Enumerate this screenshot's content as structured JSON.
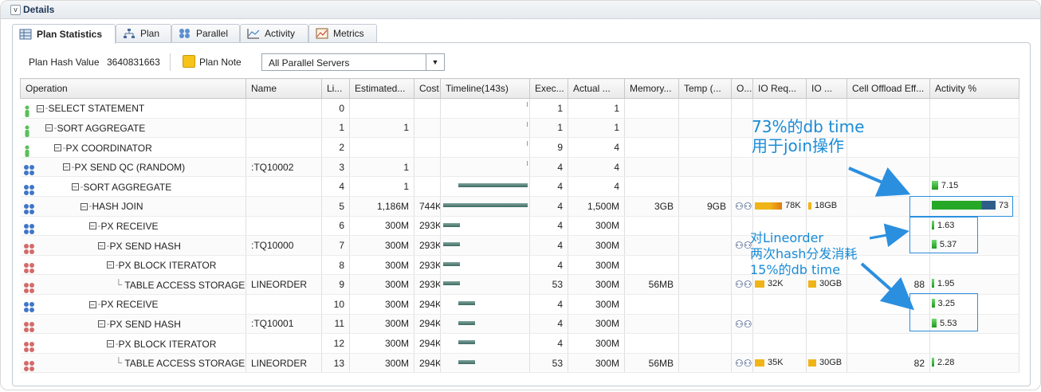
{
  "section": {
    "title": "Details"
  },
  "tabs": [
    {
      "label": "Plan Statistics",
      "icon": "table-icon",
      "active": true
    },
    {
      "label": "Plan",
      "icon": "tree-icon",
      "active": false
    },
    {
      "label": "Parallel",
      "icon": "servers-icon",
      "active": false
    },
    {
      "label": "Activity",
      "icon": "line-chart-icon",
      "active": false
    },
    {
      "label": "Metrics",
      "icon": "metrics-chart-icon",
      "active": false
    }
  ],
  "toolbar": {
    "plan_hash_label": "Plan Hash Value",
    "plan_hash_value": "3640831663",
    "plan_note_label": "Plan Note",
    "filter_selected": "All Parallel Servers"
  },
  "columns": [
    "Operation",
    "Name",
    "Li...",
    "Estimated...",
    "Cost",
    "Timeline(143s)",
    "Exec...",
    "Actual ...",
    "Memory...",
    "Temp (...",
    "O...",
    "IO Req...",
    "IO ...",
    "Cell Offload Eff...",
    "Activity %"
  ],
  "rows": [
    {
      "icon": "green",
      "depth": 0,
      "op": "SELECT STATEMENT",
      "name": "",
      "line": "0",
      "est": "",
      "cost": "",
      "exec": "1",
      "actual": "1",
      "mem": "",
      "temp": "",
      "bin": false,
      "io_req": "",
      "io_bytes": "",
      "cell": "",
      "act": "",
      "act_pct": 0
    },
    {
      "icon": "green",
      "depth": 1,
      "op": "SORT AGGREGATE",
      "name": "",
      "line": "1",
      "est": "1",
      "cost": "",
      "exec": "1",
      "actual": "1",
      "mem": "",
      "temp": "",
      "bin": false,
      "io_req": "",
      "io_bytes": "",
      "cell": "",
      "act": "",
      "act_pct": 0
    },
    {
      "icon": "green",
      "depth": 2,
      "op": "PX COORDINATOR",
      "name": "",
      "line": "2",
      "est": "",
      "cost": "",
      "exec": "9",
      "actual": "4",
      "mem": "",
      "temp": "",
      "bin": false,
      "io_req": "",
      "io_bytes": "",
      "cell": "",
      "act": "",
      "act_pct": 0
    },
    {
      "icon": "blue",
      "depth": 3,
      "op": "PX SEND QC (RANDOM)",
      "name": ":TQ10002",
      "line": "3",
      "est": "1",
      "cost": "",
      "exec": "4",
      "actual": "4",
      "mem": "",
      "temp": "",
      "bin": false,
      "io_req": "",
      "io_bytes": "",
      "cell": "",
      "act": "",
      "act_pct": 0
    },
    {
      "icon": "blue",
      "depth": 4,
      "op": "SORT AGGREGATE",
      "name": "",
      "line": "4",
      "est": "1",
      "cost": "",
      "exec": "4",
      "actual": "4",
      "mem": "",
      "temp": "",
      "bin": false,
      "io_req": "",
      "io_bytes": "",
      "cell": "",
      "act": "7.15",
      "act_pct": 7.15
    },
    {
      "icon": "blue",
      "depth": 5,
      "op": "HASH JOIN",
      "name": "",
      "line": "5",
      "est": "1,186M",
      "cost": "744K",
      "exec": "4",
      "actual": "1,500M",
      "mem": "3GB",
      "temp": "9GB",
      "bin": true,
      "io_req": "78K",
      "io_bytes": "18GB",
      "cell": "",
      "act": "73",
      "act_pct": 73
    },
    {
      "icon": "blue",
      "depth": 6,
      "op": "PX RECEIVE",
      "name": "",
      "line": "6",
      "est": "300M",
      "cost": "293K",
      "exec": "4",
      "actual": "300M",
      "mem": "",
      "temp": "",
      "bin": false,
      "io_req": "",
      "io_bytes": "",
      "cell": "",
      "act": "1.63",
      "act_pct": 1.63
    },
    {
      "icon": "red",
      "depth": 7,
      "op": "PX SEND HASH",
      "name": ":TQ10000",
      "line": "7",
      "est": "300M",
      "cost": "293K",
      "exec": "4",
      "actual": "300M",
      "mem": "",
      "temp": "",
      "bin": true,
      "io_req": "",
      "io_bytes": "",
      "cell": "",
      "act": "5.37",
      "act_pct": 5.37
    },
    {
      "icon": "red",
      "depth": 8,
      "op": "PX BLOCK ITERATOR",
      "name": "",
      "line": "8",
      "est": "300M",
      "cost": "293K",
      "exec": "4",
      "actual": "300M",
      "mem": "",
      "temp": "",
      "bin": false,
      "io_req": "",
      "io_bytes": "",
      "cell": "",
      "act": "",
      "act_pct": 0
    },
    {
      "icon": "red",
      "depth": 9,
      "op": "TABLE ACCESS STORAGE ...",
      "name": "LINEORDER",
      "line": "9",
      "est": "300M",
      "cost": "293K",
      "exec": "53",
      "actual": "300M",
      "mem": "56MB",
      "temp": "",
      "bin": true,
      "io_req": "32K",
      "io_bytes": "30GB",
      "cell": "88",
      "act": "1.95",
      "act_pct": 1.95
    },
    {
      "icon": "blue",
      "depth": 6,
      "op": "PX RECEIVE",
      "name": "",
      "line": "10",
      "est": "300M",
      "cost": "294K",
      "exec": "4",
      "actual": "300M",
      "mem": "",
      "temp": "",
      "bin": false,
      "io_req": "",
      "io_bytes": "",
      "cell": "",
      "act": "3.25",
      "act_pct": 3.25
    },
    {
      "icon": "red",
      "depth": 7,
      "op": "PX SEND HASH",
      "name": ":TQ10001",
      "line": "11",
      "est": "300M",
      "cost": "294K",
      "exec": "4",
      "actual": "300M",
      "mem": "",
      "temp": "",
      "bin": true,
      "io_req": "",
      "io_bytes": "",
      "cell": "",
      "act": "5.53",
      "act_pct": 5.53
    },
    {
      "icon": "red",
      "depth": 8,
      "op": "PX BLOCK ITERATOR",
      "name": "",
      "line": "12",
      "est": "300M",
      "cost": "294K",
      "exec": "4",
      "actual": "300M",
      "mem": "",
      "temp": "",
      "bin": false,
      "io_req": "",
      "io_bytes": "",
      "cell": "",
      "act": "",
      "act_pct": 0
    },
    {
      "icon": "red",
      "depth": 9,
      "op": "TABLE ACCESS STORAGE ...",
      "name": "LINEORDER",
      "line": "13",
      "est": "300M",
      "cost": "294K",
      "exec": "53",
      "actual": "300M",
      "mem": "56MB",
      "temp": "",
      "bin": true,
      "io_req": "35K",
      "io_bytes": "30GB",
      "cell": "82",
      "act": "2.28",
      "act_pct": 2.28
    }
  ],
  "timeline": {
    "total_seconds": 143,
    "spans": [
      {
        "row": 0,
        "start": 143,
        "end": 143
      },
      {
        "row": 1,
        "start": 143,
        "end": 143
      },
      {
        "row": 2,
        "start": 143,
        "end": 143
      },
      {
        "row": 3,
        "start": 143,
        "end": 143
      },
      {
        "row": 4,
        "start": 26,
        "end": 143
      },
      {
        "row": 5,
        "start": 0,
        "end": 143
      },
      {
        "row": 6,
        "start": 0,
        "end": 29
      },
      {
        "row": 7,
        "start": 0,
        "end": 29
      },
      {
        "row": 8,
        "start": 0,
        "end": 29
      },
      {
        "row": 9,
        "start": 0,
        "end": 29
      },
      {
        "row": 10,
        "start": 26,
        "end": 54
      },
      {
        "row": 11,
        "start": 26,
        "end": 54
      },
      {
        "row": 12,
        "start": 26,
        "end": 54
      },
      {
        "row": 13,
        "start": 26,
        "end": 54
      }
    ]
  },
  "annotations": {
    "note1_line1": "73%的db time",
    "note1_line2": "用于join操作",
    "note2_line1": "对Lineorder",
    "note2_line2": "两次hash分发消耗",
    "note2_line3": "15%的db time"
  },
  "colors": {
    "annotation": "#1a8bd6",
    "activity_bar": "#22a022",
    "timeline_bar": "#4f7a72",
    "io_bar": "#f0b418"
  }
}
